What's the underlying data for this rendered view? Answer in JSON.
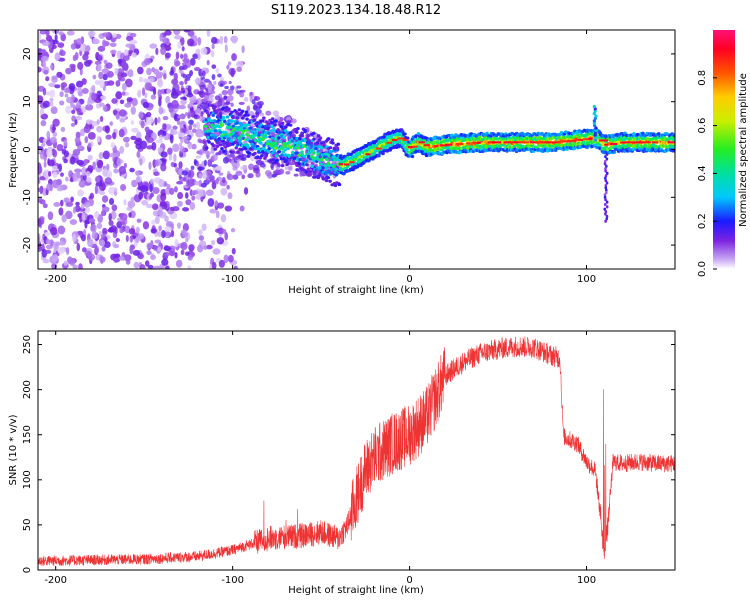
{
  "title": "S119.2023.134.18.48.R12",
  "chart_data": [
    {
      "type": "heatmap",
      "xlabel": "Height of straight line (km)",
      "ylabel": "Frequency (Hz)",
      "xlim": [
        -210,
        150
      ],
      "ylim": [
        -25,
        25
      ],
      "xticks": [
        -200,
        -100,
        0,
        100
      ],
      "yticks": [
        -20,
        -10,
        0,
        10,
        20
      ],
      "colorbar": {
        "label": "Normalized spectral amplitude",
        "range": [
          0,
          1
        ],
        "ticks": [
          0.0,
          0.2,
          0.4,
          0.6,
          0.8
        ]
      },
      "ridge": {
        "description_points_x": [
          -115,
          -100,
          -85,
          -70,
          -55,
          -45,
          -38,
          -30,
          -20,
          -10,
          -5,
          0,
          5,
          10,
          20,
          40,
          60,
          80,
          95,
          105,
          110,
          120,
          150
        ],
        "description_points_y": [
          5,
          4,
          2.5,
          1,
          -1,
          -2.5,
          -3.3,
          -2,
          0,
          2,
          2.5,
          0,
          1.5,
          0.5,
          1,
          1.5,
          1.5,
          1.5,
          2,
          2.5,
          1,
          1.5,
          1.5
        ]
      }
    },
    {
      "type": "line",
      "xlabel": "Height of straight line (km)",
      "ylabel": "SNR (10 * v/v)",
      "xlim": [
        -210,
        150
      ],
      "ylim": [
        0,
        265
      ],
      "xticks": [
        -200,
        -100,
        0,
        100
      ],
      "yticks": [
        0,
        50,
        100,
        150,
        200,
        250
      ],
      "series": [
        {
          "color": "#ee3333",
          "x": [
            -210,
            -150,
            -120,
            -100,
            -80,
            -60,
            -50,
            -40,
            -35,
            -30,
            -25,
            -20,
            -10,
            0,
            10,
            20,
            30,
            40,
            50,
            60,
            70,
            80,
            85,
            87,
            95,
            100,
            105,
            108,
            110,
            112,
            115,
            120,
            130,
            140,
            150
          ],
          "y": [
            10,
            12,
            15,
            22,
            35,
            38,
            42,
            35,
            50,
            80,
            110,
            125,
            140,
            150,
            170,
            215,
            230,
            240,
            245,
            248,
            247,
            238,
            235,
            148,
            140,
            120,
            110,
            60,
            15,
            50,
            120,
            118,
            120,
            118,
            118
          ]
        }
      ]
    }
  ]
}
